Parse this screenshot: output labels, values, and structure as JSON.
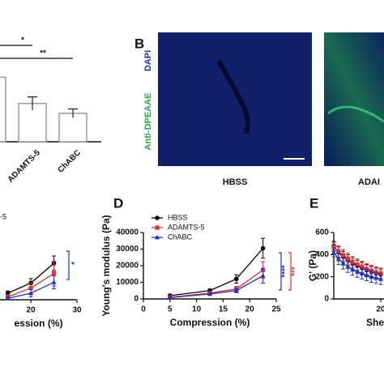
{
  "chart_data": [
    {
      "type": "bar",
      "categories": [
        null,
        "ADAMTS-5",
        "ChABC"
      ],
      "values": [
        59,
        35,
        26
      ],
      "errors": [
        6,
        6,
        4
      ],
      "ylim": [
        0,
        100
      ],
      "color": "#999999",
      "annotations": [
        {
          "text": "*",
          "from": 0,
          "to": 1
        },
        {
          "text": "**",
          "from": 0,
          "to": 2
        }
      ]
    },
    {
      "type": "line",
      "x": [
        15,
        20,
        25
      ],
      "xlim": [
        13.3,
        30
      ],
      "ylim": [
        0,
        100
      ],
      "xticks": [
        20,
        30
      ],
      "xlabel": "ession (%)",
      "legend_fragment": "-5",
      "series": [
        {
          "name": "HBSS",
          "color": "#000000",
          "marker": "circle",
          "values": [
            9,
            23,
            50
          ],
          "errors": [
            3,
            6,
            10
          ]
        },
        {
          "name": "ADAMTS-5",
          "color": "#e03030",
          "marker": "square",
          "values": [
            4,
            16,
            36
          ],
          "errors": [
            3,
            7,
            17
          ]
        },
        {
          "name": "ChABC",
          "color": "#1f2fd0",
          "marker": "triangle",
          "values": [
            2,
            9,
            24
          ],
          "errors": [
            2,
            5,
            9
          ]
        }
      ],
      "annotations": [
        {
          "text": "*",
          "color": "#1f2fd0"
        }
      ]
    },
    {
      "type": "line",
      "label": "D",
      "x": [
        5,
        12.5,
        17.5,
        22.5
      ],
      "xlim": [
        0,
        25
      ],
      "ylim": [
        0,
        40000
      ],
      "xticks": [
        0,
        5,
        10,
        15,
        20,
        25
      ],
      "yticks": [
        0,
        10000,
        20000,
        30000,
        40000
      ],
      "xlabel": "Compression (%)",
      "ylabel": "Young's modulus (Pa)",
      "legend": true,
      "series": [
        {
          "name": "HBSS",
          "color": "#000000",
          "marker": "circle",
          "values": [
            2000,
            5000,
            12000,
            30500
          ],
          "errors": [
            500,
            1000,
            2500,
            6000
          ]
        },
        {
          "name": "ADAMTS-5",
          "color": "#e03030",
          "marker": "square",
          "values": [
            1000,
            3500,
            6000,
            17500
          ],
          "errors": [
            400,
            800,
            1500,
            5000
          ]
        },
        {
          "name": "ChABC",
          "color": "#1f2fd0",
          "marker": "triangle",
          "values": [
            800,
            3000,
            5000,
            14000
          ],
          "errors": [
            300,
            700,
            1200,
            4500
          ]
        }
      ],
      "annotations": [
        {
          "text": "****",
          "color": "#1f2fd0"
        },
        {
          "text": "***",
          "color": "#e03030"
        }
      ]
    },
    {
      "type": "line",
      "label": "E",
      "x": [
        0,
        2,
        4,
        6,
        8,
        10,
        12,
        14,
        16,
        18,
        20
      ],
      "xlim": [
        0,
        21.4
      ],
      "ylim": [
        0,
        600
      ],
      "xticks": [
        20
      ],
      "yticks": [
        0,
        200,
        400,
        600
      ],
      "xlabel": "She",
      "ylabel": "G' (Pa)",
      "series": [
        {
          "name": "HBSS",
          "color": "#000000",
          "marker": "circle",
          "values": [
            480,
            420,
            380,
            350,
            320,
            300,
            280,
            260,
            245,
            230,
            220
          ],
          "errors": [
            40,
            50,
            50,
            50,
            50,
            50,
            50,
            50,
            50,
            50,
            50
          ]
        },
        {
          "name": "ADAMTS-5",
          "color": "#e03030",
          "marker": "square",
          "values": [
            470,
            430,
            395,
            365,
            335,
            310,
            290,
            270,
            255,
            240,
            230
          ],
          "errors": [
            40,
            50,
            50,
            50,
            50,
            50,
            50,
            50,
            50,
            50,
            50
          ]
        },
        {
          "name": "ChABC",
          "color": "#1f2fd0",
          "marker": "triangle",
          "values": [
            420,
            360,
            320,
            290,
            265,
            245,
            230,
            215,
            200,
            190,
            180
          ],
          "errors": [
            40,
            50,
            50,
            50,
            50,
            50,
            50,
            50,
            50,
            50,
            50
          ]
        }
      ]
    }
  ],
  "panel_b": {
    "label": "B",
    "stain_blue": "DAPI",
    "stain_green": "Anti-DPEAAE",
    "captions": [
      "HBSS",
      "ADAI"
    ]
  }
}
